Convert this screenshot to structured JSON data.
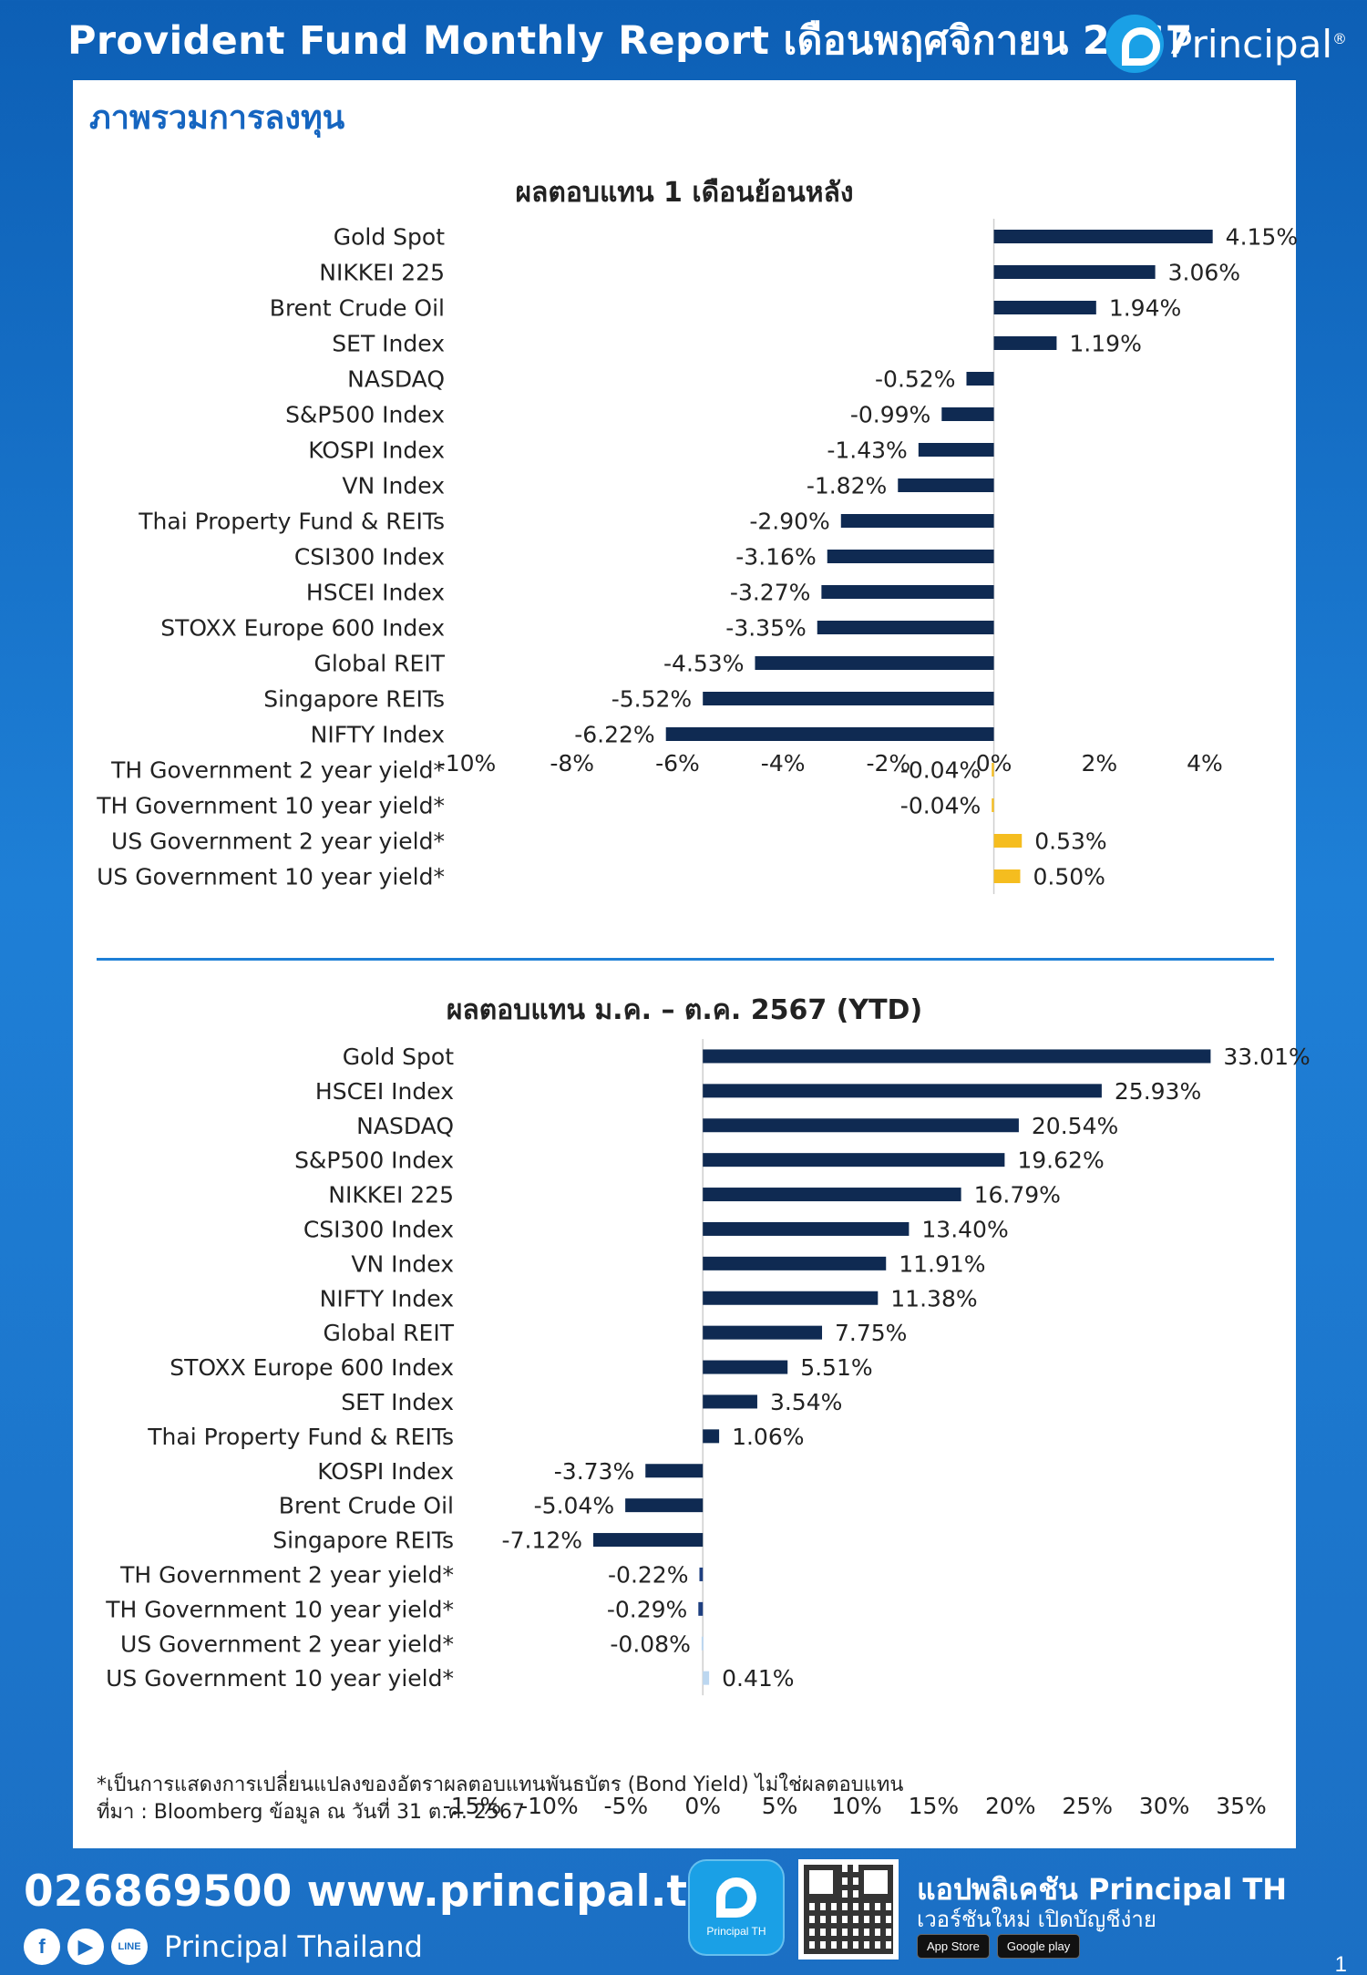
{
  "header": {
    "title": "Provident Fund Monthly Report เดือนพฤศจิกายน 2567",
    "brand": "Principal"
  },
  "section_title": "ภาพรวมการลงทุน",
  "chart_data": [
    {
      "type": "bar",
      "orientation": "horizontal",
      "title": "ผลตอบแทน 1 เดือนย้อนหลัง",
      "categories": [
        "Gold Spot",
        "NIKKEI 225",
        "Brent Crude Oil",
        "SET Index",
        "NASDAQ",
        "S&P500 Index",
        "KOSPI Index",
        "VN Index",
        "Thai Property Fund & REITs",
        "CSI300 Index",
        "HSCEI Index",
        "STOXX Europe 600 Index",
        "Global REIT",
        "Singapore REITs",
        "NIFTY Index",
        "TH Government 2 year yield*",
        "TH Government 10 year yield*",
        "US Government 2 year yield*",
        "US Government 10 year yield*"
      ],
      "values": [
        4.15,
        3.06,
        1.94,
        1.19,
        -0.52,
        -0.99,
        -1.43,
        -1.82,
        -2.9,
        -3.16,
        -3.27,
        -3.35,
        -4.53,
        -5.52,
        -6.22,
        -0.04,
        -0.04,
        0.53,
        0.5
      ],
      "value_labels": [
        "4.15%",
        "3.06%",
        "1.94%",
        "1.19%",
        "-0.52%",
        "-0.99%",
        "-1.43%",
        "-1.82%",
        "-2.90%",
        "-3.16%",
        "-3.27%",
        "-3.35%",
        "-4.53%",
        "-5.52%",
        "-6.22%",
        "-0.04%",
        "-0.04%",
        "0.53%",
        "0.50%"
      ],
      "bar_colors": [
        "#0f2a52",
        "#0f2a52",
        "#0f2a52",
        "#0f2a52",
        "#0f2a52",
        "#0f2a52",
        "#0f2a52",
        "#0f2a52",
        "#0f2a52",
        "#0f2a52",
        "#0f2a52",
        "#0f2a52",
        "#0f2a52",
        "#0f2a52",
        "#0f2a52",
        "#f5bd1f",
        "#f5bd1f",
        "#f5bd1f",
        "#f5bd1f"
      ],
      "xlim": [
        -10,
        4
      ],
      "xticks": [
        -10,
        -8,
        -6,
        -4,
        -2,
        0,
        2,
        4
      ],
      "xtick_labels": [
        "-10%",
        "-8%",
        "-6%",
        "-4%",
        "-2%",
        "0%",
        "2%",
        "4%"
      ],
      "grid": false,
      "legend": "none"
    },
    {
      "type": "bar",
      "orientation": "horizontal",
      "title": "ผลตอบแทน ม.ค. – ต.ค. 2567 (YTD)",
      "categories": [
        "Gold Spot",
        "HSCEI Index",
        "NASDAQ",
        "S&P500 Index",
        "NIKKEI 225",
        "CSI300 Index",
        "VN Index",
        "NIFTY Index",
        "Global REIT",
        "STOXX Europe 600 Index",
        "SET Index",
        "Thai Property Fund & REITs",
        "KOSPI Index",
        "Brent Crude Oil",
        "Singapore REITs",
        "TH Government 2 year yield*",
        "TH Government 10 year yield*",
        "US Government 2 year yield*",
        "US Government 10 year yield*"
      ],
      "values": [
        33.01,
        25.93,
        20.54,
        19.62,
        16.79,
        13.4,
        11.91,
        11.38,
        7.75,
        5.51,
        3.54,
        1.06,
        -3.73,
        -5.04,
        -7.12,
        -0.22,
        -0.29,
        -0.08,
        0.41
      ],
      "value_labels": [
        "33.01%",
        "25.93%",
        "20.54%",
        "19.62%",
        "16.79%",
        "13.40%",
        "11.91%",
        "11.38%",
        "7.75%",
        "5.51%",
        "3.54%",
        "1.06%",
        "-3.73%",
        "-5.04%",
        "-7.12%",
        "-0.22%",
        "-0.29%",
        "-0.08%",
        "0.41%"
      ],
      "bar_colors": [
        "#0f2a52",
        "#0f2a52",
        "#0f2a52",
        "#0f2a52",
        "#0f2a52",
        "#0f2a52",
        "#0f2a52",
        "#0f2a52",
        "#0f2a52",
        "#0f2a52",
        "#0f2a52",
        "#0f2a52",
        "#0f2a52",
        "#0f2a52",
        "#0f2a52",
        "#1e3f80",
        "#1e3f80",
        "#bcd7f0",
        "#bcd7f0"
      ],
      "xlim": [
        -15,
        35
      ],
      "xticks": [
        -15,
        -10,
        -5,
        0,
        5,
        10,
        15,
        20,
        25,
        30,
        35
      ],
      "xtick_labels": [
        "-15%",
        "-10%",
        "-5%",
        "0%",
        "5%",
        "10%",
        "15%",
        "20%",
        "25%",
        "30%",
        "35%"
      ],
      "grid": false,
      "legend": "none"
    }
  ],
  "footnote": {
    "line1": "*เป็นการแสดงการเปลี่ยนแปลงของอัตราผลตอบแทนพันธบัตร (Bond Yield) ไม่ใช่ผลตอบแทน",
    "line2": "ที่มา : Bloomberg ข้อมูล ณ วันที่ 31 ต.ค. 2567"
  },
  "footer": {
    "phone_web": "026869500 www.principal.th",
    "social_name": "Principal Thailand",
    "app_icon_label": "Principal TH",
    "app_heading": "แอปพลิเคชัน Principal TH",
    "app_sub": "เวอร์ชันใหม่ เปิดบัญชีง่าย",
    "app_store": "App Store",
    "google_play": "Google play",
    "page_number": "1"
  },
  "icons": [
    "facebook-icon",
    "youtube-icon",
    "line-icon",
    "app-icon",
    "qr-code-icon"
  ]
}
